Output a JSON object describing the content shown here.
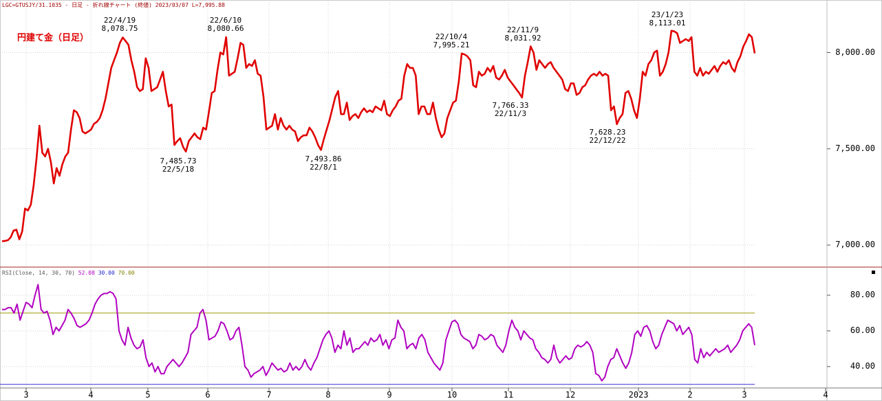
{
  "header": {
    "symbol_line": "LGC=GTUSJY/31.1035 - 日足 - 折れ線チャート (終値) 2023/03/07 L=7,995.88"
  },
  "title": "円建て金（日足）",
  "rsi_header": {
    "label": "RSI(Close, 14, 30, 70)",
    "value1": "52.08",
    "value2": "30.00",
    "value3": "70.00"
  },
  "colors": {
    "price_line": "#e00000",
    "rsi_line": "#b000c0",
    "upper_band": "#9a9a00",
    "lower_band": "#3030d0",
    "separator": "#a02020",
    "grid": "#d0d0d0"
  },
  "annotations": [
    {
      "line1": "22/4/19",
      "line2": "8,078.75"
    },
    {
      "line1": "22/6/10",
      "line2": "8,080.66"
    },
    {
      "line1": "7,485.73",
      "line2": "22/5/18"
    },
    {
      "line1": "7,493.86",
      "line2": "22/8/1"
    },
    {
      "line1": "22/10/4",
      "line2": "7,995.21"
    },
    {
      "line1": "22/11/9",
      "line2": "8,031.92"
    },
    {
      "line1": "7,766.33",
      "line2": "22/11/3"
    },
    {
      "line1": "7,628.23",
      "line2": "22/12/22"
    },
    {
      "line1": "23/1/23",
      "line2": "8,113.01"
    }
  ],
  "chart_data": [
    {
      "type": "line",
      "ylim": [
        6900,
        8230
      ],
      "yticks": [
        {
          "value": 7000,
          "label": "7,000.00"
        },
        {
          "value": 7500,
          "label": "7,500.00"
        },
        {
          "value": 8000,
          "label": "8,000.00"
        }
      ],
      "xticks": [
        "3",
        "4",
        "5",
        "6",
        "7",
        "8",
        "9",
        "10",
        "11",
        "12",
        "2023",
        "2",
        "3",
        "4"
      ],
      "grid": true,
      "series": [
        {
          "values": [
            7020,
            7022,
            7025,
            7040,
            7075,
            7080,
            7030,
            7070,
            7190,
            7180,
            7210,
            7310,
            7450,
            7620,
            7480,
            7460,
            7500,
            7430,
            7320,
            7400,
            7360,
            7420,
            7460,
            7480,
            7600,
            7700,
            7690,
            7660,
            7590,
            7580,
            7590,
            7600,
            7630,
            7640,
            7660,
            7700,
            7760,
            7840,
            7920,
            7960,
            8000,
            8050,
            8078,
            8060,
            8040,
            7960,
            7900,
            7820,
            7800,
            7810,
            7970,
            7920,
            7800,
            7810,
            7820,
            7860,
            7900,
            7800,
            7720,
            7730,
            7520,
            7540,
            7555,
            7510,
            7486,
            7540,
            7560,
            7580,
            7560,
            7550,
            7610,
            7600,
            7690,
            7790,
            7800,
            7910,
            8000,
            7990,
            8080,
            7880,
            7890,
            7900,
            7970,
            8050,
            8040,
            7920,
            7940,
            7930,
            7960,
            7890,
            7880,
            7770,
            7600,
            7610,
            7620,
            7680,
            7600,
            7660,
            7620,
            7600,
            7620,
            7600,
            7590,
            7540,
            7560,
            7570,
            7570,
            7610,
            7590,
            7560,
            7520,
            7494,
            7550,
            7600,
            7650,
            7710,
            7770,
            7800,
            7680,
            7680,
            7740,
            7650,
            7670,
            7680,
            7660,
            7690,
            7710,
            7690,
            7700,
            7690,
            7720,
            7710,
            7700,
            7750,
            7680,
            7670,
            7700,
            7720,
            7750,
            7760,
            7880,
            7940,
            7920,
            7920,
            7880,
            7680,
            7720,
            7720,
            7680,
            7680,
            7740,
            7660,
            7600,
            7560,
            7580,
            7660,
            7700,
            7740,
            7750,
            7850,
            7995,
            7990,
            7980,
            7960,
            7830,
            7820,
            7900,
            7880,
            7890,
            7920,
            7900,
            7930,
            7870,
            7860,
            7880,
            7910,
            7870,
            7850,
            7830,
            7810,
            7790,
            7766,
            7880,
            7950,
            8032,
            8000,
            7910,
            7960,
            7940,
            7920,
            7940,
            7950,
            7920,
            7900,
            7880,
            7860,
            7810,
            7800,
            7840,
            7840,
            7780,
            7790,
            7820,
            7830,
            7860,
            7880,
            7890,
            7880,
            7900,
            7880,
            7890,
            7880,
            7700,
            7720,
            7628,
            7660,
            7680,
            7790,
            7800,
            7760,
            7700,
            7660,
            7760,
            7900,
            7880,
            7940,
            7960,
            8000,
            8010,
            7880,
            7900,
            7940,
            8000,
            8113,
            8110,
            8100,
            8050,
            8060,
            8070,
            8060,
            8080,
            7900,
            7880,
            7920,
            7880,
            7900,
            7890,
            7910,
            7930,
            7900,
            7930,
            7950,
            7940,
            7960,
            7920,
            7900,
            7950,
            7980,
            8030,
            8060,
            8095,
            8080,
            7996
          ]
        }
      ]
    },
    {
      "type": "line",
      "ylim": [
        28,
        90
      ],
      "yticks": [
        {
          "value": 40,
          "label": "40.00"
        },
        {
          "value": 60,
          "label": "60.00"
        },
        {
          "value": 80,
          "label": "80.00"
        }
      ],
      "bands": [
        70,
        30
      ],
      "grid": true,
      "series": [
        {
          "values": [
            72,
            72,
            73,
            73,
            70,
            75,
            66,
            71,
            76,
            75,
            73,
            80,
            86,
            72,
            70,
            71,
            66,
            58,
            62,
            60,
            63,
            66,
            72,
            70,
            67,
            63,
            62,
            63,
            64,
            66,
            70,
            75,
            78,
            80,
            81,
            81,
            82,
            81,
            78,
            60,
            55,
            52,
            62,
            56,
            52,
            50,
            51,
            55,
            45,
            40,
            42,
            37,
            40,
            36,
            36,
            40,
            42,
            44,
            42,
            40,
            42,
            45,
            48,
            58,
            60,
            62,
            70,
            72,
            66,
            55,
            56,
            57,
            60,
            65,
            64,
            60,
            55,
            56,
            60,
            62,
            52,
            40,
            38,
            34,
            36,
            37,
            38,
            40,
            35,
            38,
            42,
            40,
            38,
            39,
            37,
            38,
            42,
            38,
            40,
            38,
            40,
            44,
            40,
            38,
            42,
            45,
            50,
            55,
            58,
            60,
            56,
            48,
            52,
            50,
            60,
            52,
            56,
            48,
            50,
            50,
            52,
            54,
            52,
            56,
            54,
            55,
            58,
            52,
            55,
            50,
            55,
            56,
            66,
            62,
            60,
            50,
            52,
            53,
            50,
            56,
            58,
            55,
            48,
            45,
            42,
            40,
            38,
            42,
            55,
            60,
            65,
            66,
            64,
            58,
            56,
            55,
            54,
            50,
            52,
            58,
            57,
            55,
            56,
            58,
            57,
            52,
            50,
            48,
            52,
            60,
            66,
            62,
            60,
            55,
            60,
            58,
            56,
            55,
            50,
            48,
            45,
            44,
            42,
            44,
            52,
            45,
            42,
            44,
            46,
            44,
            45,
            50,
            52,
            51,
            52,
            54,
            52,
            48,
            36,
            35,
            32,
            34,
            40,
            44,
            45,
            50,
            46,
            42,
            39,
            42,
            48,
            58,
            60,
            57,
            62,
            63,
            60,
            54,
            50,
            52,
            58,
            62,
            66,
            65,
            64,
            60,
            63,
            58,
            60,
            62,
            58,
            44,
            42,
            50,
            45,
            48,
            46,
            48,
            50,
            48,
            49,
            50,
            52,
            48,
            50,
            52,
            55,
            60,
            62,
            64,
            62,
            52
          ]
        }
      ]
    }
  ]
}
